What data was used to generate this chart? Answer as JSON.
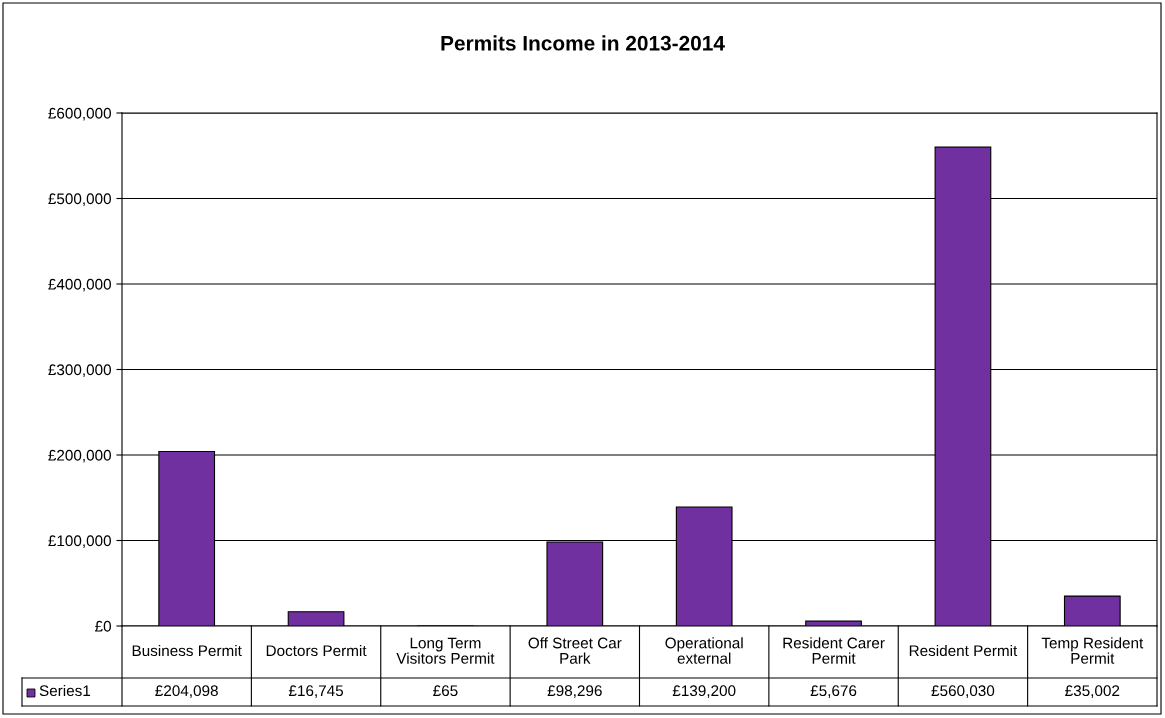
{
  "chart_data": {
    "type": "bar",
    "title": "Permits Income in 2013-2014",
    "categories": [
      "Business Permit",
      "Doctors Permit",
      "Long Term Visitors Permit",
      "Off Street Car Park",
      "Operational external",
      "Resident Carer Permit",
      "Resident Permit",
      "Temp Resident Permit"
    ],
    "series": [
      {
        "name": "Series1",
        "color": "#7030a0",
        "values": [
          204098,
          16745,
          65,
          98296,
          139200,
          5676,
          560030,
          35002
        ],
        "value_labels": [
          "£204,098",
          "£16,745",
          "£65",
          "£98,296",
          "£139,200",
          "£5,676",
          "£560,030",
          "£35,002"
        ]
      }
    ],
    "ylim": [
      0,
      600000
    ],
    "yticks": [
      {
        "value": 0,
        "label": "£0"
      },
      {
        "value": 100000,
        "label": "£100,000"
      },
      {
        "value": 200000,
        "label": "£200,000"
      },
      {
        "value": 300000,
        "label": "£300,000"
      },
      {
        "value": 400000,
        "label": "£400,000"
      },
      {
        "value": 500000,
        "label": "£500,000"
      },
      {
        "value": 600000,
        "label": "£600,000"
      }
    ],
    "grid": "y",
    "legend": "bottom"
  }
}
